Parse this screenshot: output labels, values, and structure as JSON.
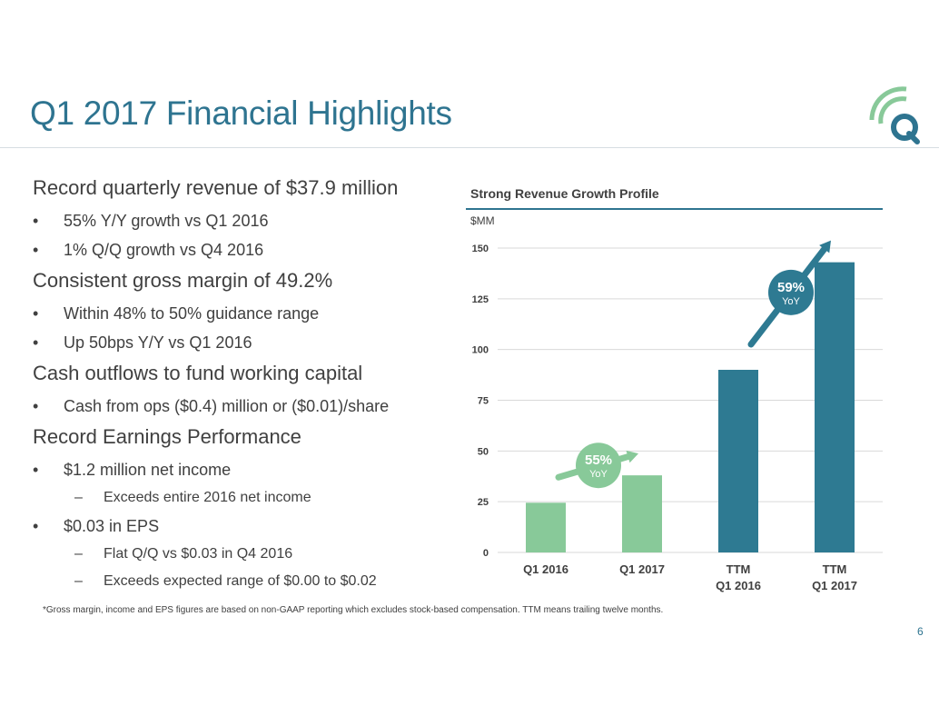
{
  "slide": {
    "title": "Q1 2017 Financial Highlights",
    "page_number": "6",
    "footnote": "*Gross margin, income and EPS figures are based on non-GAAP reporting which excludes stock-based compensation. TTM means trailing twelve months."
  },
  "highlights": {
    "s1": {
      "heading": "Record quarterly revenue of $37.9 million",
      "b1": "55% Y/Y growth vs Q1 2016",
      "b2": "1% Q/Q growth vs Q4 2016"
    },
    "s2": {
      "heading": "Consistent gross margin of 49.2%",
      "b1": "Within 48% to 50% guidance range",
      "b2": "Up 50bps Y/Y vs Q1 2016"
    },
    "s3": {
      "heading": "Cash outflows to fund working capital",
      "b1": "Cash from ops ($0.4) million or ($0.01)/share"
    },
    "s4": {
      "heading": "Record Earnings Performance",
      "b1": "$1.2 million net income",
      "b1_sub1": "Exceeds entire 2016 net income",
      "b2": "$0.03 in EPS",
      "b2_sub1": "Flat Q/Q vs $0.03 in Q4 2016",
      "b2_sub2": "Exceeds expected range of $0.00 to $0.02"
    }
  },
  "chart_data": {
    "type": "bar",
    "title": "Strong Revenue Growth Profile",
    "ylabel": "$MM",
    "ylim": [
      0,
      150
    ],
    "yticks": [
      0,
      25,
      50,
      75,
      100,
      125,
      150
    ],
    "grid": true,
    "categories": [
      [
        "Q1 2016"
      ],
      [
        "Q1 2017"
      ],
      [
        "TTM",
        "Q1 2016"
      ],
      [
        "TTM",
        "Q1 2017"
      ]
    ],
    "values": [
      24.5,
      38,
      90,
      143
    ],
    "bar_colors": [
      "#88c999",
      "#88c999",
      "#2e7a92",
      "#2e7a92"
    ],
    "annotations": [
      {
        "pct": "55%",
        "label": "YoY",
        "color": "#88c999",
        "from_category": 0,
        "to_category": 1
      },
      {
        "pct": "59%",
        "label": "YoY",
        "color": "#2e7a92",
        "from_category": 2,
        "to_category": 3
      }
    ]
  },
  "colors": {
    "accent": "#2e7490",
    "green": "#88c999",
    "teal": "#2e7a92"
  }
}
